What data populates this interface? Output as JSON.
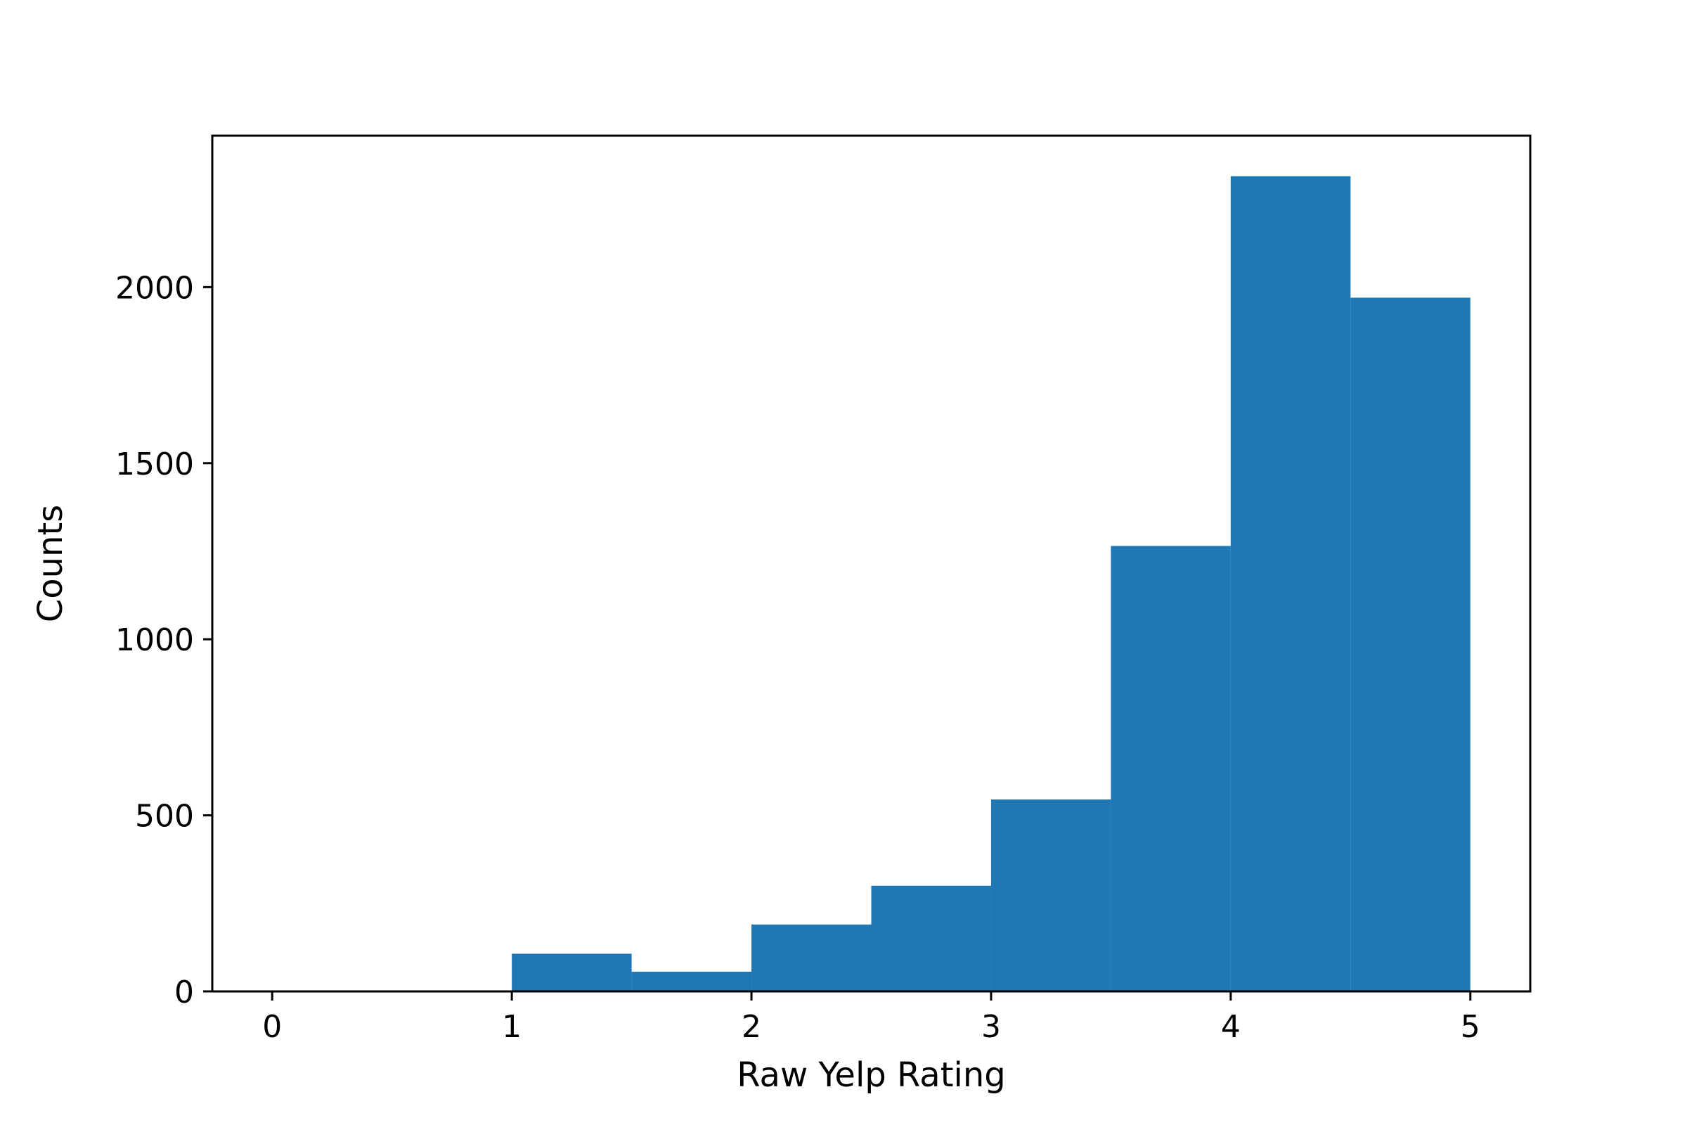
{
  "colors": {
    "bar": "#1f77b4",
    "axes": "#000000",
    "background": "#ffffff"
  },
  "chart_data": {
    "type": "bar",
    "subtype": "histogram",
    "bins": [
      {
        "x0": 1.0,
        "x1": 1.5,
        "count": 107
      },
      {
        "x0": 1.5,
        "x1": 2.0,
        "count": 56
      },
      {
        "x0": 2.0,
        "x1": 2.5,
        "count": 190
      },
      {
        "x0": 2.5,
        "x1": 3.0,
        "count": 300
      },
      {
        "x0": 3.0,
        "x1": 3.5,
        "count": 545
      },
      {
        "x0": 3.5,
        "x1": 4.0,
        "count": 1265
      },
      {
        "x0": 4.0,
        "x1": 4.5,
        "count": 2315
      },
      {
        "x0": 4.5,
        "x1": 5.0,
        "count": 1970
      }
    ],
    "xlabel": "Raw Yelp Rating",
    "ylabel": "Counts",
    "xlim": [
      -0.25,
      5.25
    ],
    "ylim": [
      0,
      2430
    ],
    "xticks": [
      0,
      1,
      2,
      3,
      4,
      5
    ],
    "xtick_labels": [
      "0",
      "1",
      "2",
      "3",
      "4",
      "5"
    ],
    "yticks": [
      0,
      500,
      1000,
      1500,
      2000
    ],
    "ytick_labels": [
      "0",
      "500",
      "1000",
      "1500",
      "2000"
    ],
    "grid": false,
    "legend": "none"
  }
}
